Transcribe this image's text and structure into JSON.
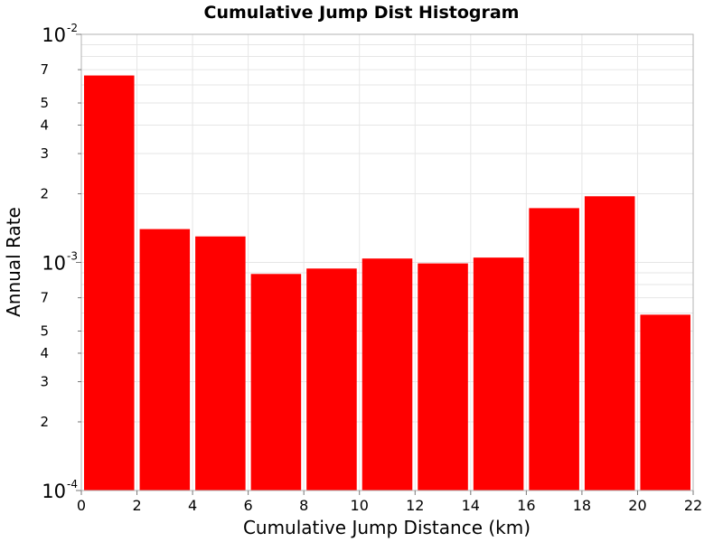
{
  "chart_data": {
    "type": "bar",
    "title": "Cumulative Jump Dist Histogram",
    "xlabel": "Cumulative Jump Distance (km)",
    "ylabel": "Annual Rate",
    "xlim": [
      0,
      22
    ],
    "ylim": [
      0.0001,
      0.01
    ],
    "yscale": "log",
    "x_ticks": [
      "0",
      "2",
      "4",
      "6",
      "8",
      "10",
      "12",
      "14",
      "16",
      "18",
      "20",
      "22"
    ],
    "y_major_ticks": [
      {
        "base": "10",
        "exp": "-2",
        "value": 0.01
      },
      {
        "base": "10",
        "exp": "-3",
        "value": 0.001
      },
      {
        "base": "10",
        "exp": "-4",
        "value": 0.0001
      }
    ],
    "y_minor_labels": [
      {
        "label": "7",
        "value": 0.007
      },
      {
        "label": "5",
        "value": 0.005
      },
      {
        "label": "4",
        "value": 0.004
      },
      {
        "label": "3",
        "value": 0.003
      },
      {
        "label": "2",
        "value": 0.002
      },
      {
        "label": "7",
        "value": 0.0007
      },
      {
        "label": "5",
        "value": 0.0005
      },
      {
        "label": "4",
        "value": 0.0004
      },
      {
        "label": "3",
        "value": 0.0003
      },
      {
        "label": "2",
        "value": 0.0002
      }
    ],
    "bin_width": 2,
    "x": [
      0,
      2,
      4,
      6,
      8,
      10,
      12,
      14,
      16,
      18,
      20
    ],
    "values": [
      0.0066,
      0.0014,
      0.0013,
      0.00089,
      0.00094,
      0.00104,
      0.00099,
      0.00105,
      0.00173,
      0.00195,
      0.00059
    ],
    "grid": true,
    "bar_color": "#ff0000"
  }
}
